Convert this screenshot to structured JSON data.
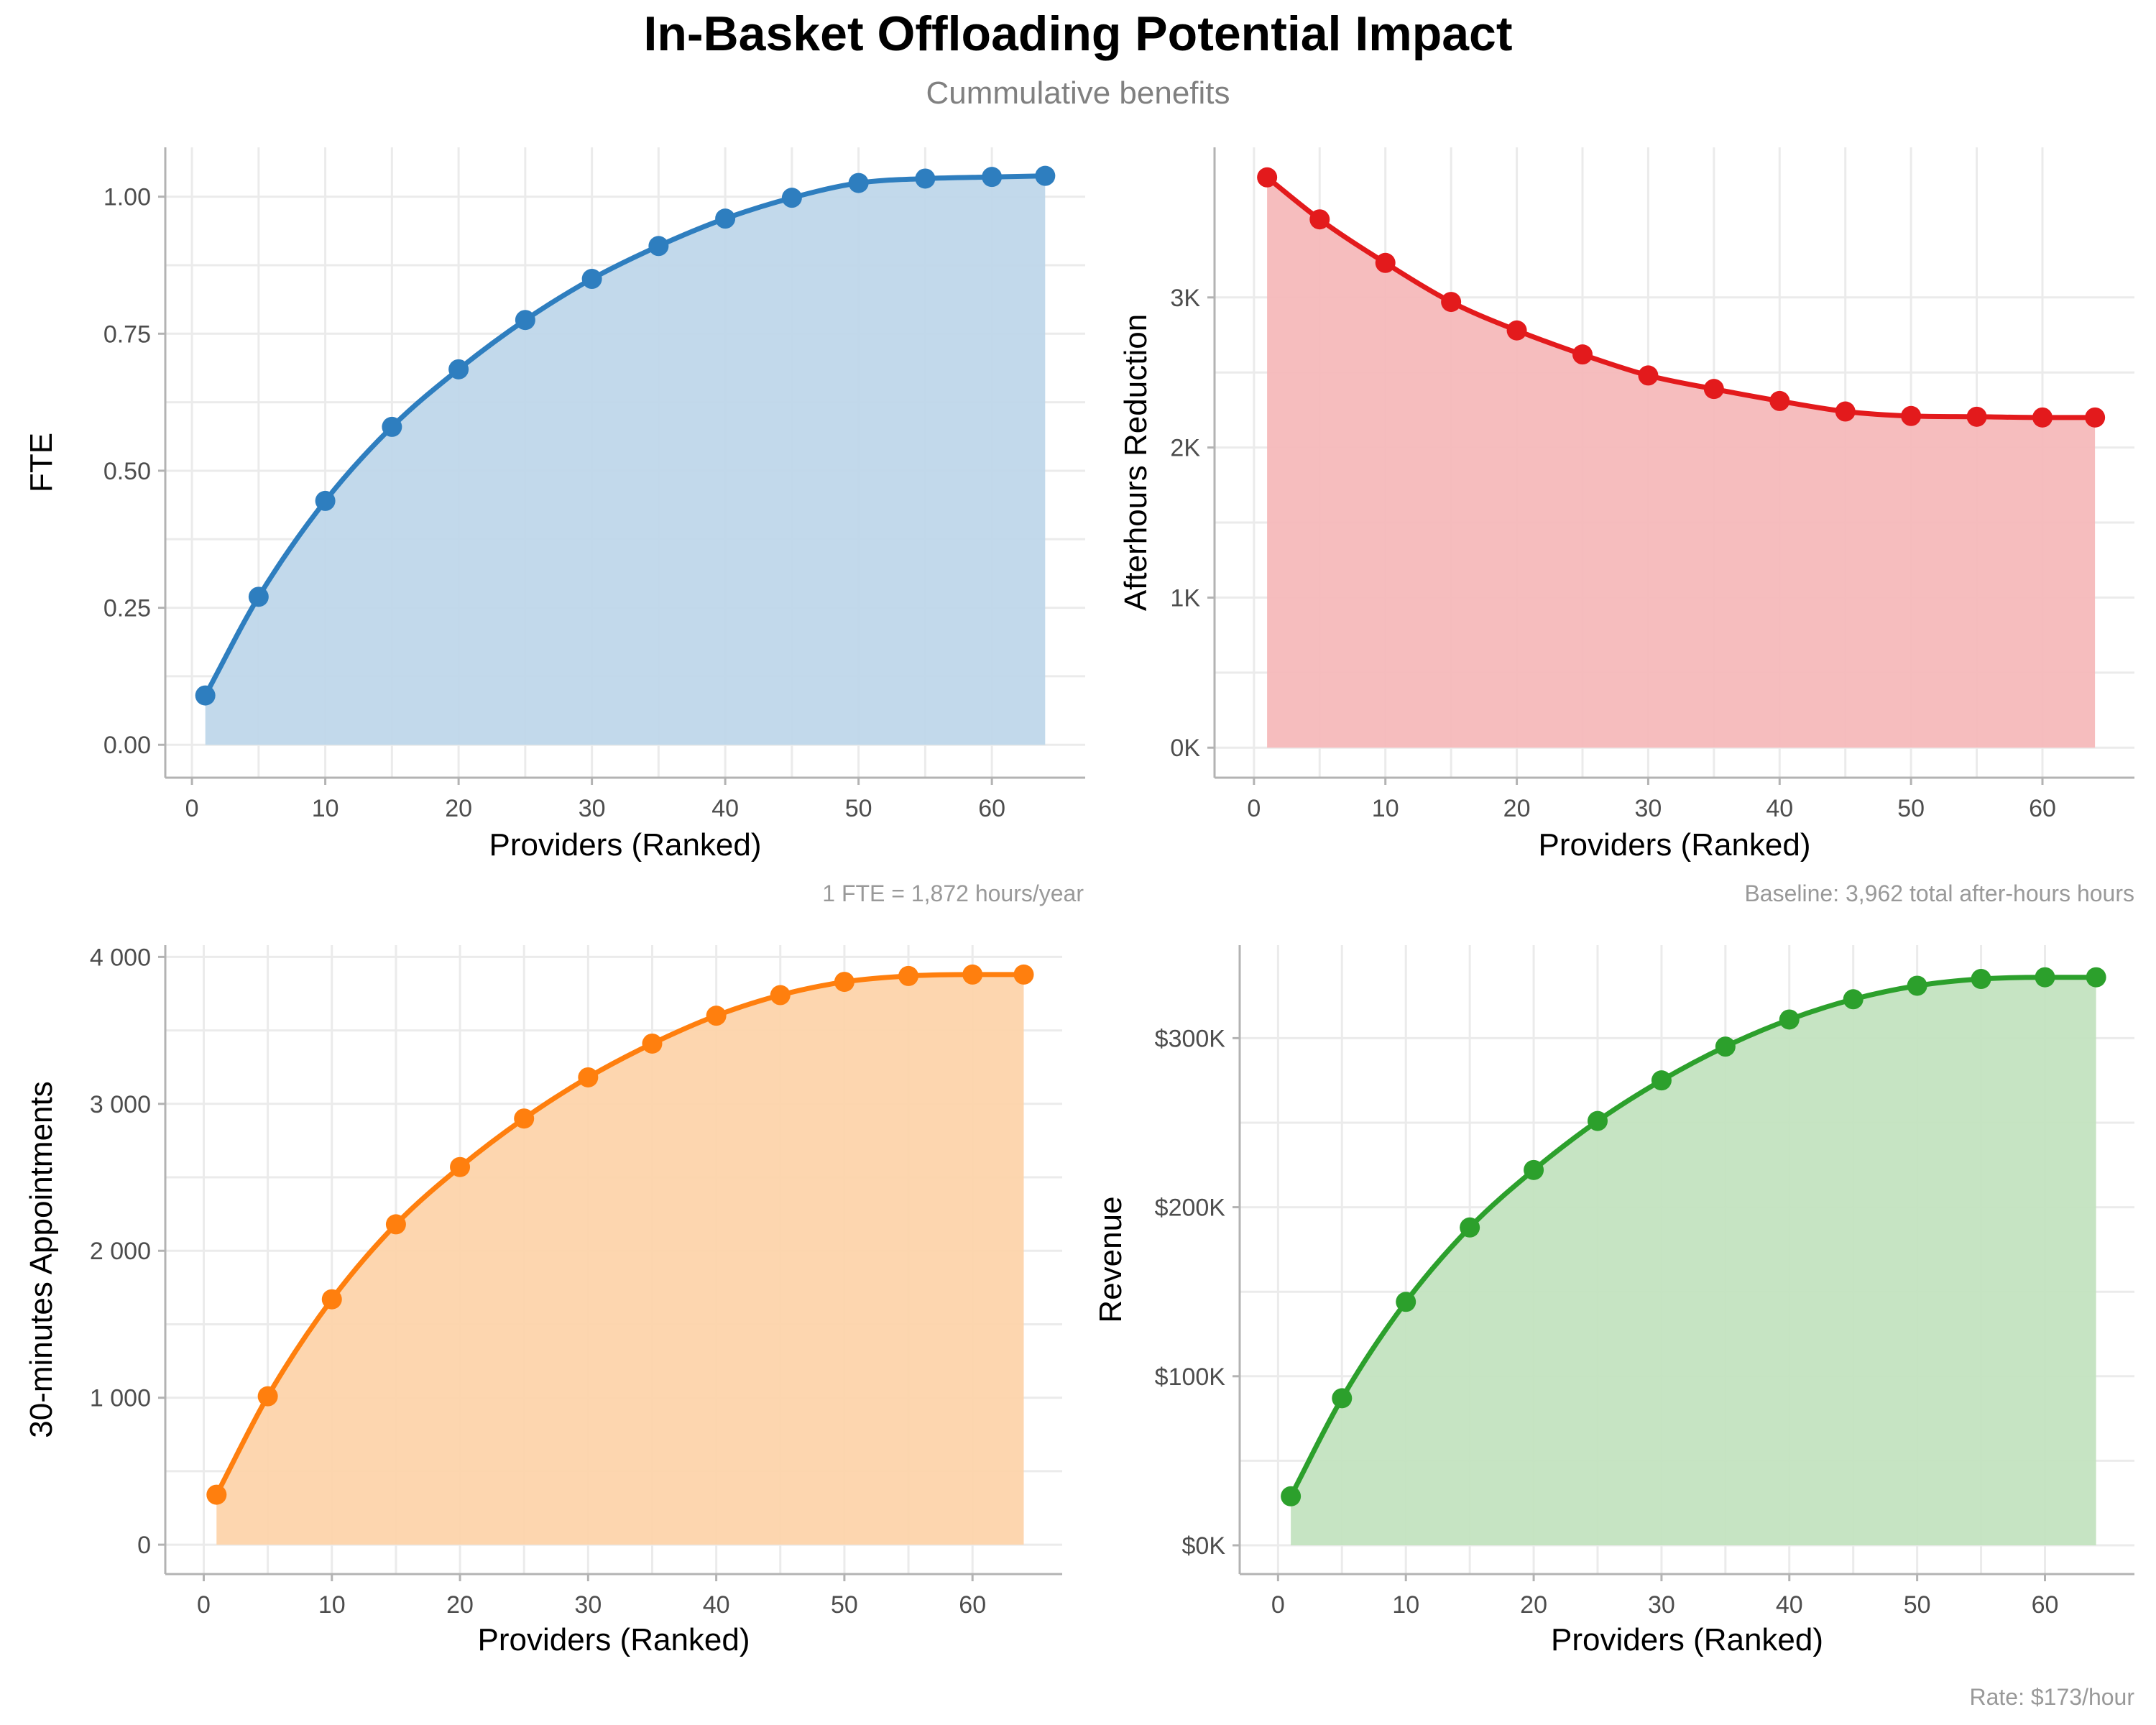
{
  "figure": {
    "title": "In-Basket Offloading Potential Impact",
    "subtitle": "Cummulative benefits"
  },
  "chart_data": [
    {
      "type": "area",
      "id": "fte",
      "xlabel": "Providers (Ranked)",
      "ylabel": "FTE",
      "caption": "1 FTE = 1,872 hours/year",
      "color": "#2E7EBF",
      "fill": "#BFD7EA",
      "xlim": [
        -2,
        67
      ],
      "ylim": [
        -0.06,
        1.09
      ],
      "x_ticks": [
        0,
        10,
        20,
        30,
        40,
        50,
        60
      ],
      "x_tick_labels": [
        "0",
        "10",
        "20",
        "30",
        "40",
        "50",
        "60"
      ],
      "y_ticks": [
        0,
        0.25,
        0.5,
        0.75,
        1.0
      ],
      "y_tick_labels": [
        "0.00",
        "0.25",
        "0.50",
        "0.75",
        "1.00"
      ],
      "x": [
        1,
        5,
        10,
        15,
        20,
        25,
        30,
        35,
        40,
        45,
        50,
        55,
        60,
        64
      ],
      "y": [
        0.09,
        0.27,
        0.445,
        0.58,
        0.685,
        0.775,
        0.85,
        0.91,
        0.96,
        0.998,
        1.025,
        1.033,
        1.036,
        1.038
      ]
    },
    {
      "type": "area",
      "id": "afterhours",
      "xlabel": "Providers (Ranked)",
      "ylabel": "Afterhours Reduction",
      "caption": "Baseline: 3,962 total after-hours hours",
      "color": "#E31A1C",
      "fill": "#F6B9BA",
      "xlim": [
        -3,
        67
      ],
      "ylim": [
        -200,
        4000
      ],
      "x_ticks": [
        0,
        10,
        20,
        30,
        40,
        50,
        60
      ],
      "x_tick_labels": [
        "0",
        "10",
        "20",
        "30",
        "40",
        "50",
        "60"
      ],
      "y_ticks": [
        0,
        1000,
        2000,
        3000
      ],
      "y_tick_labels": [
        "0K",
        "1K",
        "2K",
        "3K"
      ],
      "x": [
        1,
        5,
        10,
        15,
        20,
        25,
        30,
        35,
        40,
        45,
        50,
        55,
        60,
        64
      ],
      "y": [
        3800,
        3520,
        3230,
        2970,
        2780,
        2620,
        2480,
        2390,
        2310,
        2240,
        2210,
        2205,
        2200,
        2200
      ]
    },
    {
      "type": "area",
      "id": "appointments",
      "xlabel": "Providers (Ranked)",
      "ylabel": "30-minutes Appointments",
      "caption": "",
      "color": "#FF7F0E",
      "fill": "#FDD4AB",
      "xlim": [
        -3,
        67
      ],
      "ylim": [
        -200,
        4080
      ],
      "x_ticks": [
        0,
        10,
        20,
        30,
        40,
        50,
        60
      ],
      "x_tick_labels": [
        "0",
        "10",
        "20",
        "30",
        "40",
        "50",
        "60"
      ],
      "y_ticks": [
        0,
        1000,
        2000,
        3000,
        4000
      ],
      "y_tick_labels": [
        "0",
        "1 000",
        "2 000",
        "3 000",
        "4 000"
      ],
      "x": [
        1,
        5,
        10,
        15,
        20,
        25,
        30,
        35,
        40,
        45,
        50,
        55,
        60,
        64
      ],
      "y": [
        340,
        1010,
        1670,
        2180,
        2570,
        2900,
        3180,
        3410,
        3600,
        3740,
        3830,
        3870,
        3880,
        3880
      ]
    },
    {
      "type": "area",
      "id": "revenue",
      "xlabel": "Providers (Ranked)",
      "ylabel": "Revenue",
      "caption": "Rate: $173/hour",
      "color": "#2CA02C",
      "fill": "#C3E3C0",
      "xlim": [
        -3,
        67
      ],
      "ylim": [
        -17000,
        355000
      ],
      "x_ticks": [
        0,
        10,
        20,
        30,
        40,
        50,
        60
      ],
      "x_tick_labels": [
        "0",
        "10",
        "20",
        "30",
        "40",
        "50",
        "60"
      ],
      "y_ticks": [
        0,
        100000,
        200000,
        300000
      ],
      "y_tick_labels": [
        "$0K",
        "$100K",
        "$200K",
        "$300K"
      ],
      "x": [
        1,
        5,
        10,
        15,
        20,
        25,
        30,
        35,
        40,
        45,
        50,
        55,
        60,
        64
      ],
      "y": [
        29000,
        87000,
        144000,
        188000,
        222000,
        251000,
        275000,
        295000,
        311000,
        323000,
        331000,
        335000,
        336000,
        336000
      ]
    }
  ]
}
